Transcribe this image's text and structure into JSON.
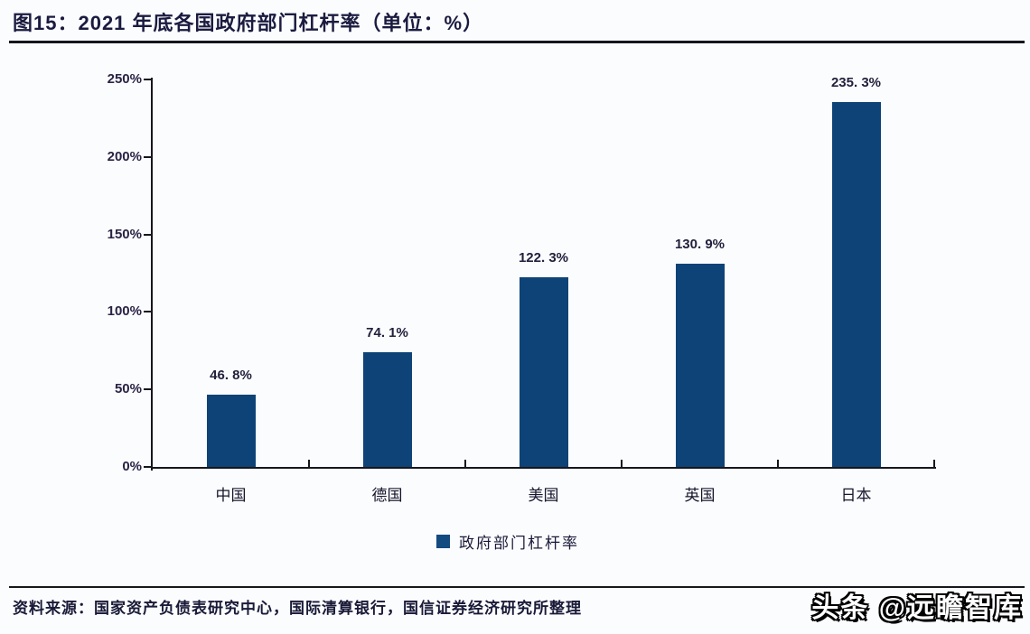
{
  "page": {
    "title": "图15：2021 年底各国政府部门杠杆率（单位：%）",
    "source_note": "资料来源：国家资产负债表研究中心，国际清算银行，国信证券经济研究所整理",
    "watermark": "头条 @远瞻智库"
  },
  "colors": {
    "bar": "#0e4377",
    "legend_swatch": "#134a80",
    "axis": "#16161e",
    "title_text": "#1b1b40"
  },
  "chart_data": {
    "type": "bar",
    "title": "2021 年底各国政府部门杠杆率（单位：%）",
    "categories": [
      "中国",
      "德国",
      "美国",
      "英国",
      "日本"
    ],
    "values": [
      46.8,
      74.1,
      122.3,
      130.9,
      235.3
    ],
    "value_labels": [
      "46. 8%",
      "74. 1%",
      "122. 3%",
      "130. 9%",
      "235. 3%"
    ],
    "y_ticks": [
      0,
      50,
      100,
      150,
      200,
      250
    ],
    "y_tick_labels": [
      "0%",
      "50%",
      "100%",
      "150%",
      "200%",
      "250%"
    ],
    "ylim": [
      0,
      250
    ],
    "xlabel": "",
    "ylabel": "",
    "grid": false,
    "legend": "政府部门杠杆率",
    "legend_position": "bottom"
  }
}
